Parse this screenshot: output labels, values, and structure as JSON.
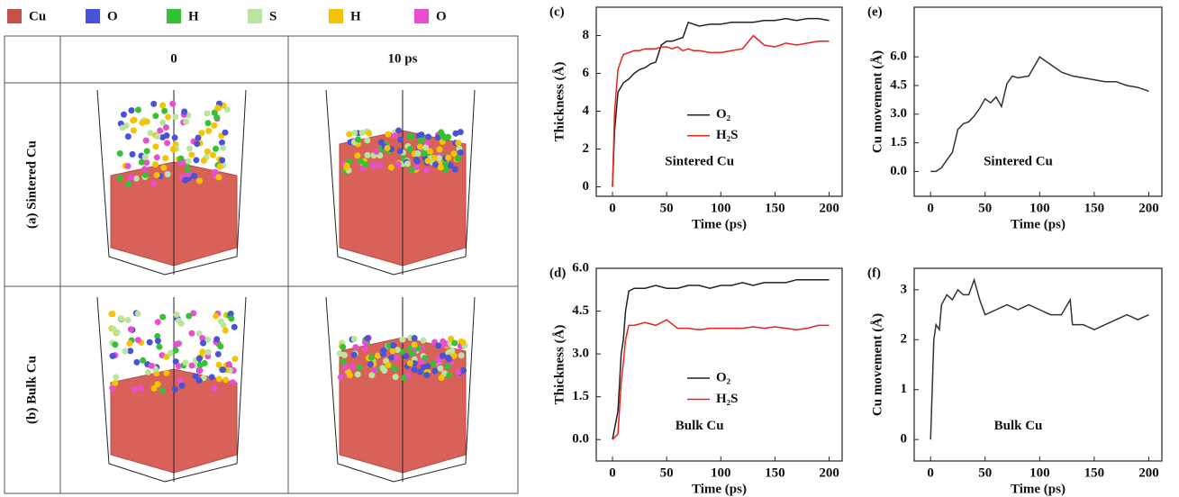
{
  "legend": [
    {
      "label": "Cu",
      "color": "#c8504b"
    },
    {
      "label": "O",
      "color": "#4a52d6"
    },
    {
      "label": "H",
      "color": "#34c234"
    },
    {
      "label": "S",
      "color": "#b8e6a0"
    },
    {
      "label": "H",
      "color": "#f4c400"
    },
    {
      "label": "O",
      "color": "#e84fd0"
    }
  ],
  "table": {
    "header": [
      "0",
      "10 ps"
    ],
    "rows": [
      "(a) Sintered Cu",
      "(b) Bulk Cu"
    ]
  },
  "chart_data": [
    {
      "type": "line",
      "panel": "(c)",
      "xlabel": "Time (ps)",
      "ylabel": "Thickness (Å)",
      "annotation": "Sintered Cu",
      "legend": "center",
      "x": [
        0,
        2,
        5,
        8,
        10,
        15,
        20,
        25,
        30,
        35,
        40,
        45,
        50,
        55,
        60,
        65,
        70,
        75,
        80,
        90,
        100,
        110,
        120,
        130,
        140,
        150,
        160,
        170,
        180,
        190,
        200
      ],
      "series": [
        {
          "name": "O₂",
          "color": "#222222",
          "values": [
            0,
            3,
            5,
            5.3,
            5.5,
            5.7,
            6,
            6.2,
            6.3,
            6.5,
            6.6,
            7.5,
            7.7,
            7.7,
            7.8,
            7.9,
            8.7,
            8.6,
            8.5,
            8.6,
            8.6,
            8.7,
            8.7,
            8.7,
            8.8,
            8.8,
            8.9,
            8.8,
            8.9,
            8.9,
            8.8
          ]
        },
        {
          "name": "H₂S",
          "color": "#e8231f",
          "values": [
            0,
            4,
            6.2,
            6.7,
            7,
            7.1,
            7.2,
            7.2,
            7.3,
            7.3,
            7.3,
            7.4,
            7.4,
            7.3,
            7.4,
            7.2,
            7.3,
            7.2,
            7.2,
            7.1,
            7.1,
            7.2,
            7.3,
            8,
            7.5,
            7.4,
            7.6,
            7.5,
            7.6,
            7.7,
            7.7
          ]
        }
      ],
      "xlim": [
        -15,
        212
      ],
      "ylim": [
        -0.5,
        9.5
      ],
      "xticks": [
        0,
        50,
        100,
        150,
        200
      ],
      "yticks": [
        0,
        2,
        4,
        6,
        8
      ]
    },
    {
      "type": "line",
      "panel": "(e)",
      "xlabel": "Time (ps)",
      "ylabel": "Cu movement (Å)",
      "annotation": "Sintered Cu",
      "x": [
        0,
        5,
        10,
        15,
        20,
        25,
        30,
        35,
        40,
        45,
        50,
        55,
        60,
        65,
        70,
        75,
        80,
        90,
        100,
        110,
        120,
        130,
        140,
        150,
        160,
        170,
        180,
        190,
        200
      ],
      "series": [
        {
          "color": "#333333",
          "values": [
            0,
            0,
            0.2,
            0.6,
            1,
            2.2,
            2.5,
            2.6,
            2.9,
            3.3,
            3.8,
            3.6,
            3.9,
            3.4,
            4.6,
            5,
            4.9,
            5,
            6,
            5.6,
            5.2,
            5,
            4.9,
            4.8,
            4.7,
            4.7,
            4.5,
            4.4,
            4.2
          ]
        }
      ],
      "xlim": [
        -15,
        212
      ],
      "ylim": [
        -1.3,
        8.6
      ],
      "xticks": [
        0,
        50,
        100,
        150,
        200
      ],
      "yticks": [
        {
          "value": 0,
          "label": "0.0"
        },
        {
          "value": 1.5,
          "label": "1.5"
        },
        {
          "value": 3,
          "label": "3.0"
        },
        {
          "value": 4.5,
          "label": "4.5"
        },
        {
          "value": 6,
          "label": "6.0"
        }
      ]
    },
    {
      "type": "line",
      "panel": "(d)",
      "xlabel": "Time (ps)",
      "ylabel": "Thickness (Å)",
      "annotation": "Bulk Cu",
      "legend": "center",
      "x": [
        0,
        5,
        8,
        10,
        12,
        15,
        20,
        30,
        40,
        50,
        60,
        70,
        80,
        90,
        100,
        110,
        120,
        130,
        140,
        150,
        160,
        170,
        180,
        190,
        200
      ],
      "series": [
        {
          "name": "O₂",
          "color": "#222222",
          "values": [
            0,
            1,
            3,
            3.5,
            4.5,
            5.2,
            5.3,
            5.3,
            5.4,
            5.3,
            5.3,
            5.4,
            5.4,
            5.3,
            5.4,
            5.4,
            5.5,
            5.4,
            5.5,
            5.5,
            5.5,
            5.6,
            5.6,
            5.6,
            5.6
          ]
        },
        {
          "name": "H₂S",
          "color": "#e8231f",
          "values": [
            0,
            0.2,
            2,
            2.7,
            3.5,
            4,
            4,
            4.1,
            4,
            4.2,
            3.9,
            3.9,
            3.85,
            3.9,
            3.9,
            3.9,
            3.9,
            3.95,
            3.9,
            3.95,
            3.9,
            3.85,
            3.9,
            4,
            4
          ]
        }
      ],
      "xlim": [
        -15,
        212
      ],
      "ylim": [
        -0.75,
        6
      ],
      "xticks": [
        0,
        50,
        100,
        150,
        200
      ],
      "yticks": [
        {
          "value": 0,
          "label": "0.0"
        },
        {
          "value": 1.5,
          "label": "1.5"
        },
        {
          "value": 3,
          "label": "3.0"
        },
        {
          "value": 4.5,
          "label": "4.5"
        },
        {
          "value": 6,
          "label": "6.0"
        }
      ]
    },
    {
      "type": "line",
      "panel": "(f)",
      "xlabel": "Time (ps)",
      "ylabel": "Cu movement (Å)",
      "annotation": "Bulk Cu",
      "x": [
        0,
        3,
        5,
        8,
        10,
        15,
        20,
        25,
        30,
        35,
        40,
        45,
        50,
        60,
        70,
        80,
        90,
        100,
        110,
        120,
        128,
        130,
        140,
        150,
        160,
        170,
        180,
        190,
        200
      ],
      "series": [
        {
          "color": "#333333",
          "values": [
            0,
            2,
            2.3,
            2.2,
            2.7,
            2.9,
            2.8,
            3,
            2.9,
            2.9,
            3.2,
            2.8,
            2.5,
            2.6,
            2.7,
            2.6,
            2.7,
            2.6,
            2.5,
            2.5,
            2.8,
            2.3,
            2.3,
            2.2,
            2.3,
            2.4,
            2.5,
            2.4,
            2.5
          ]
        }
      ],
      "xlim": [
        -15,
        212
      ],
      "ylim": [
        -0.43,
        3.43
      ],
      "xticks": [
        0,
        50,
        100,
        150,
        200
      ],
      "yticks": [
        0,
        1,
        2,
        3
      ]
    }
  ]
}
